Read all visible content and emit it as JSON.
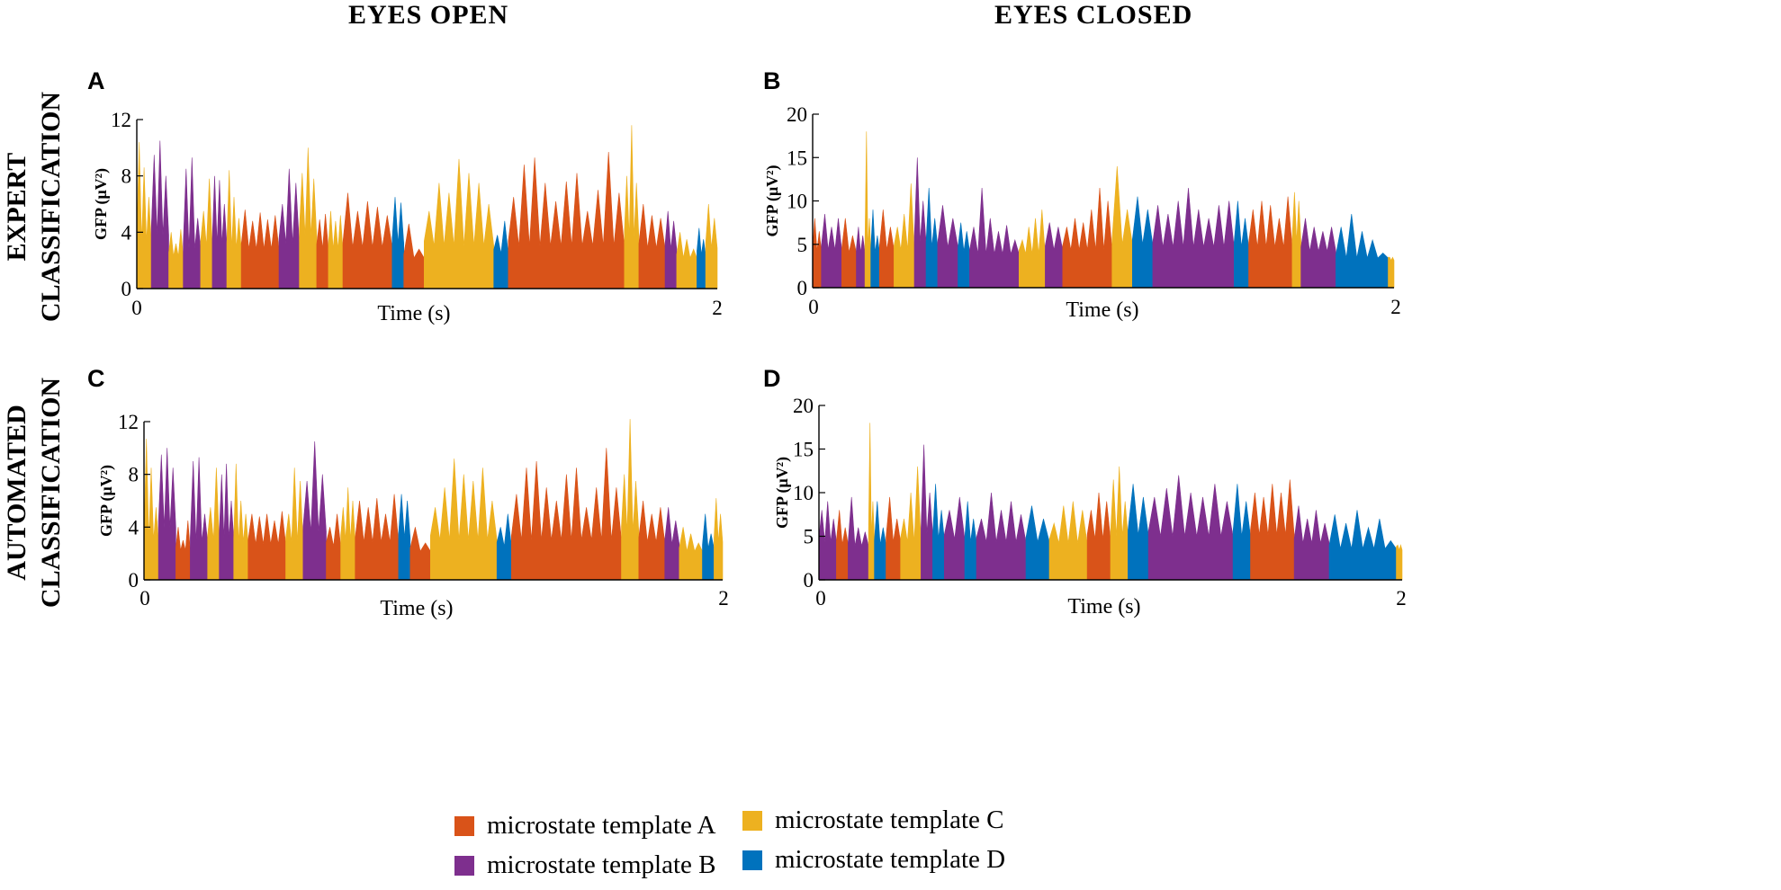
{
  "column_titles": [
    "EYES OPEN",
    "EYES CLOSED"
  ],
  "row_titles": [
    {
      "line1": "EXPERT",
      "line2": "CLASSIFICATION"
    },
    {
      "line1": "AUTOMATED",
      "line2": "CLASSIFICATION"
    }
  ],
  "colors": {
    "A": "#D95319",
    "B": "#7E2F8E",
    "C": "#EDB120",
    "D": "#0072BD"
  },
  "legend": [
    {
      "key": "A",
      "label": "microstate template A"
    },
    {
      "key": "C",
      "label": "microstate template C"
    },
    {
      "key": "B",
      "label": "microstate template B"
    },
    {
      "key": "D",
      "label": "microstate template D"
    }
  ],
  "chart_data": [
    {
      "panel": "A",
      "type": "area",
      "condition": "EYES OPEN",
      "classification": "EXPERT CLASSIFICATION",
      "xlabel": "Time (s)",
      "ylabel": "GFP (μV²)",
      "xlim": [
        0,
        2
      ],
      "ylim": [
        0,
        12
      ],
      "xticks": [
        "0",
        "2"
      ],
      "yticks": [
        "0",
        "4",
        "8",
        "12"
      ],
      "segments": [
        {
          "state": "C",
          "t0": 0.0,
          "t1": 0.05,
          "peaks": [
            10.4,
            8.6,
            6.5
          ]
        },
        {
          "state": "B",
          "t0": 0.05,
          "t1": 0.11,
          "peaks": [
            9.5,
            10.5,
            8.0
          ]
        },
        {
          "state": "C",
          "t0": 0.11,
          "t1": 0.16,
          "peaks": [
            4.0,
            3.2,
            4.2
          ]
        },
        {
          "state": "B",
          "t0": 0.16,
          "t1": 0.22,
          "peaks": [
            8.5,
            9.3,
            5.0
          ]
        },
        {
          "state": "C",
          "t0": 0.22,
          "t1": 0.26,
          "peaks": [
            5.5,
            7.8
          ]
        },
        {
          "state": "B",
          "t0": 0.26,
          "t1": 0.31,
          "peaks": [
            8.0,
            7.7,
            6.0
          ]
        },
        {
          "state": "C",
          "t0": 0.31,
          "t1": 0.36,
          "peaks": [
            8.4,
            6.5,
            5.0
          ]
        },
        {
          "state": "A",
          "t0": 0.36,
          "t1": 0.49,
          "peaks": [
            5.6,
            4.8,
            5.4,
            4.9,
            5.2
          ]
        },
        {
          "state": "B",
          "t0": 0.49,
          "t1": 0.56,
          "peaks": [
            6.0,
            8.5,
            7.5
          ]
        },
        {
          "state": "C",
          "t0": 0.56,
          "t1": 0.62,
          "peaks": [
            8.2,
            10.0,
            7.8
          ]
        },
        {
          "state": "A",
          "t0": 0.62,
          "t1": 0.66,
          "peaks": [
            4.9,
            5.3
          ]
        },
        {
          "state": "C",
          "t0": 0.66,
          "t1": 0.71,
          "peaks": [
            5.5,
            4.8,
            5.2
          ]
        },
        {
          "state": "A",
          "t0": 0.71,
          "t1": 0.88,
          "peaks": [
            6.8,
            5.5,
            6.2,
            5.8,
            5.2
          ]
        },
        {
          "state": "D",
          "t0": 0.88,
          "t1": 0.92,
          "peaks": [
            6.5,
            6.1
          ]
        },
        {
          "state": "A",
          "t0": 0.92,
          "t1": 0.99,
          "peaks": [
            4.6,
            2.8
          ]
        },
        {
          "state": "C",
          "t0": 0.99,
          "t1": 1.23,
          "peaks": [
            5.5,
            7.5,
            6.8,
            9.2,
            8.2,
            7.5,
            6.0
          ]
        },
        {
          "state": "D",
          "t0": 1.23,
          "t1": 1.28,
          "peaks": [
            3.8,
            4.8
          ]
        },
        {
          "state": "A",
          "t0": 1.28,
          "t1": 1.68,
          "peaks": [
            6.5,
            8.8,
            9.3,
            7.5,
            6.2,
            7.6,
            8.2,
            5.5,
            7.0,
            9.7,
            6.8
          ]
        },
        {
          "state": "C",
          "t0": 1.68,
          "t1": 1.73,
          "peaks": [
            8.0,
            11.6,
            7.5
          ]
        },
        {
          "state": "A",
          "t0": 1.73,
          "t1": 1.82,
          "peaks": [
            6.0,
            5.2,
            5.0
          ]
        },
        {
          "state": "B",
          "t0": 1.82,
          "t1": 1.86,
          "peaks": [
            5.5,
            4.8
          ]
        },
        {
          "state": "C",
          "t0": 1.86,
          "t1": 1.93,
          "peaks": [
            4.0,
            3.5,
            2.8
          ]
        },
        {
          "state": "D",
          "t0": 1.93,
          "t1": 1.96,
          "peaks": [
            4.3,
            3.5
          ]
        },
        {
          "state": "C",
          "t0": 1.96,
          "t1": 2.0,
          "peaks": [
            6.0,
            5.0
          ]
        }
      ]
    },
    {
      "panel": "B",
      "type": "area",
      "condition": "EYES CLOSED",
      "classification": "EXPERT CLASSIFICATION",
      "xlabel": "Time (s)",
      "ylabel": "GFP (μV²)",
      "xlim": [
        0,
        2
      ],
      "ylim": [
        0,
        20
      ],
      "xticks": [
        "0",
        "2"
      ],
      "yticks": [
        "0",
        "5",
        "10",
        "15",
        "20"
      ],
      "segments": [
        {
          "state": "A",
          "t0": 0.0,
          "t1": 0.03,
          "peaks": [
            8.0,
            6.5
          ]
        },
        {
          "state": "B",
          "t0": 0.03,
          "t1": 0.1,
          "peaks": [
            8.5,
            7.0,
            8.0
          ]
        },
        {
          "state": "A",
          "t0": 0.1,
          "t1": 0.15,
          "peaks": [
            8.0,
            6.0
          ]
        },
        {
          "state": "B",
          "t0": 0.15,
          "t1": 0.18,
          "peaks": [
            7.0,
            6.0
          ]
        },
        {
          "state": "C",
          "t0": 0.18,
          "t1": 0.2,
          "peaks": [
            18.0,
            8.0
          ]
        },
        {
          "state": "D",
          "t0": 0.2,
          "t1": 0.23,
          "peaks": [
            9.0,
            6.0
          ]
        },
        {
          "state": "A",
          "t0": 0.23,
          "t1": 0.28,
          "peaks": [
            9.0,
            7.0
          ]
        },
        {
          "state": "C",
          "t0": 0.28,
          "t1": 0.35,
          "peaks": [
            7.0,
            8.5,
            12.0
          ]
        },
        {
          "state": "B",
          "t0": 0.35,
          "t1": 0.39,
          "peaks": [
            15.0,
            10.0
          ]
        },
        {
          "state": "D",
          "t0": 0.39,
          "t1": 0.43,
          "peaks": [
            11.5,
            8.0
          ]
        },
        {
          "state": "B",
          "t0": 0.43,
          "t1": 0.5,
          "peaks": [
            9.5,
            8.0
          ]
        },
        {
          "state": "D",
          "t0": 0.5,
          "t1": 0.54,
          "peaks": [
            7.5,
            6.5
          ]
        },
        {
          "state": "B",
          "t0": 0.54,
          "t1": 0.71,
          "peaks": [
            7.0,
            11.5,
            8.0,
            6.5,
            7.2,
            5.5
          ]
        },
        {
          "state": "C",
          "t0": 0.71,
          "t1": 0.8,
          "peaks": [
            5.5,
            7.0,
            8.0,
            9.0
          ]
        },
        {
          "state": "B",
          "t0": 0.8,
          "t1": 0.86,
          "peaks": [
            7.5,
            7.0
          ]
        },
        {
          "state": "A",
          "t0": 0.86,
          "t1": 1.03,
          "peaks": [
            7.0,
            8.0,
            7.5,
            9.0,
            11.5,
            10.0
          ]
        },
        {
          "state": "C",
          "t0": 1.03,
          "t1": 1.1,
          "peaks": [
            14.0,
            9.0
          ]
        },
        {
          "state": "D",
          "t0": 1.1,
          "t1": 1.17,
          "peaks": [
            10.5,
            9.0
          ]
        },
        {
          "state": "B",
          "t0": 1.17,
          "t1": 1.45,
          "peaks": [
            9.5,
            8.5,
            10.0,
            11.5,
            9.0,
            8.0,
            9.5,
            10.0
          ]
        },
        {
          "state": "D",
          "t0": 1.45,
          "t1": 1.5,
          "peaks": [
            10.0,
            8.0
          ]
        },
        {
          "state": "A",
          "t0": 1.5,
          "t1": 1.65,
          "peaks": [
            9.0,
            10.0,
            9.5,
            8.0,
            10.5
          ]
        },
        {
          "state": "C",
          "t0": 1.65,
          "t1": 1.68,
          "peaks": [
            11.0,
            10.0
          ]
        },
        {
          "state": "B",
          "t0": 1.68,
          "t1": 1.8,
          "peaks": [
            8.0,
            7.0,
            6.5,
            7.0
          ]
        },
        {
          "state": "D",
          "t0": 1.8,
          "t1": 1.98,
          "peaks": [
            7.0,
            8.5,
            6.5,
            5.5,
            4.0
          ]
        },
        {
          "state": "C",
          "t0": 1.98,
          "t1": 2.0,
          "peaks": [
            3.5,
            3.5
          ]
        }
      ]
    },
    {
      "panel": "C",
      "type": "area",
      "condition": "EYES OPEN",
      "classification": "AUTOMATED CLASSIFICATION",
      "xlabel": "Time (s)",
      "ylabel": "GFP (μV²)",
      "xlim": [
        0,
        2
      ],
      "ylim": [
        0,
        12
      ],
      "xticks": [
        "0",
        "2"
      ],
      "yticks": [
        "0",
        "4",
        "8",
        "12"
      ],
      "segments": [
        {
          "state": "C",
          "t0": 0.0,
          "t1": 0.05,
          "peaks": [
            10.7,
            8.5,
            5.5
          ]
        },
        {
          "state": "B",
          "t0": 0.05,
          "t1": 0.11,
          "peaks": [
            9.5,
            10.0,
            8.5
          ]
        },
        {
          "state": "A",
          "t0": 0.11,
          "t1": 0.16,
          "peaks": [
            4.0,
            3.0,
            4.5
          ]
        },
        {
          "state": "B",
          "t0": 0.16,
          "t1": 0.22,
          "peaks": [
            9.0,
            9.3,
            5.0
          ]
        },
        {
          "state": "C",
          "t0": 0.22,
          "t1": 0.26,
          "peaks": [
            5.5,
            8.5
          ]
        },
        {
          "state": "B",
          "t0": 0.26,
          "t1": 0.31,
          "peaks": [
            8.0,
            8.8,
            6.0
          ]
        },
        {
          "state": "C",
          "t0": 0.31,
          "t1": 0.36,
          "peaks": [
            8.8,
            6.0,
            5.0
          ]
        },
        {
          "state": "A",
          "t0": 0.36,
          "t1": 0.49,
          "peaks": [
            5.0,
            4.8,
            5.0,
            4.5,
            5.2
          ]
        },
        {
          "state": "C",
          "t0": 0.49,
          "t1": 0.55,
          "peaks": [
            5.0,
            8.5,
            7.5
          ]
        },
        {
          "state": "B",
          "t0": 0.55,
          "t1": 0.63,
          "peaks": [
            7.5,
            10.5,
            8.0
          ]
        },
        {
          "state": "A",
          "t0": 0.63,
          "t1": 0.68,
          "peaks": [
            4.0,
            5.0
          ]
        },
        {
          "state": "C",
          "t0": 0.68,
          "t1": 0.73,
          "peaks": [
            5.5,
            7.0,
            6.0
          ]
        },
        {
          "state": "A",
          "t0": 0.73,
          "t1": 0.88,
          "peaks": [
            6.0,
            5.5,
            6.2,
            5.0,
            6.5
          ]
        },
        {
          "state": "D",
          "t0": 0.88,
          "t1": 0.92,
          "peaks": [
            6.5,
            6.0
          ]
        },
        {
          "state": "A",
          "t0": 0.92,
          "t1": 0.99,
          "peaks": [
            4.0,
            2.8
          ]
        },
        {
          "state": "C",
          "t0": 0.99,
          "t1": 1.22,
          "peaks": [
            5.5,
            7.0,
            9.2,
            8.0,
            7.5,
            8.5,
            6.0
          ]
        },
        {
          "state": "D",
          "t0": 1.22,
          "t1": 1.27,
          "peaks": [
            4.0,
            5.0
          ]
        },
        {
          "state": "A",
          "t0": 1.27,
          "t1": 1.65,
          "peaks": [
            6.5,
            8.5,
            9.0,
            7.0,
            6.0,
            8.0,
            8.5,
            5.5,
            7.0,
            10.0,
            7.0
          ]
        },
        {
          "state": "C",
          "t0": 1.65,
          "t1": 1.71,
          "peaks": [
            8.0,
            12.2,
            7.5
          ]
        },
        {
          "state": "A",
          "t0": 1.71,
          "t1": 1.8,
          "peaks": [
            6.0,
            5.0,
            5.5
          ]
        },
        {
          "state": "B",
          "t0": 1.8,
          "t1": 1.85,
          "peaks": [
            5.5,
            4.5
          ]
        },
        {
          "state": "C",
          "t0": 1.85,
          "t1": 1.93,
          "peaks": [
            4.0,
            3.5,
            2.8
          ]
        },
        {
          "state": "D",
          "t0": 1.93,
          "t1": 1.97,
          "peaks": [
            5.0,
            3.5
          ]
        },
        {
          "state": "C",
          "t0": 1.97,
          "t1": 2.0,
          "peaks": [
            6.2,
            5.0
          ]
        }
      ]
    },
    {
      "panel": "D",
      "type": "area",
      "condition": "EYES CLOSED",
      "classification": "AUTOMATED CLASSIFICATION",
      "xlabel": "Time (s)",
      "ylabel": "GFP (μV²)",
      "xlim": [
        0,
        2
      ],
      "ylim": [
        0,
        20
      ],
      "xticks": [
        "0",
        "2"
      ],
      "yticks": [
        "0",
        "5",
        "10",
        "15",
        "20"
      ],
      "segments": [
        {
          "state": "B",
          "t0": 0.0,
          "t1": 0.06,
          "peaks": [
            8.0,
            9.0,
            7.0
          ]
        },
        {
          "state": "A",
          "t0": 0.06,
          "t1": 0.1,
          "peaks": [
            8.0,
            6.0
          ]
        },
        {
          "state": "B",
          "t0": 0.1,
          "t1": 0.17,
          "peaks": [
            9.5,
            6.0,
            5.5
          ]
        },
        {
          "state": "C",
          "t0": 0.17,
          "t1": 0.19,
          "peaks": [
            18.0,
            9.0
          ]
        },
        {
          "state": "D",
          "t0": 0.19,
          "t1": 0.23,
          "peaks": [
            9.0,
            6.0
          ]
        },
        {
          "state": "A",
          "t0": 0.23,
          "t1": 0.28,
          "peaks": [
            9.5,
            7.0
          ]
        },
        {
          "state": "C",
          "t0": 0.28,
          "t1": 0.35,
          "peaks": [
            7.0,
            10.0,
            13.0
          ]
        },
        {
          "state": "B",
          "t0": 0.35,
          "t1": 0.39,
          "peaks": [
            15.5,
            10.0
          ]
        },
        {
          "state": "D",
          "t0": 0.39,
          "t1": 0.43,
          "peaks": [
            11.0,
            8.0
          ]
        },
        {
          "state": "B",
          "t0": 0.43,
          "t1": 0.5,
          "peaks": [
            8.0,
            9.5
          ]
        },
        {
          "state": "D",
          "t0": 0.5,
          "t1": 0.54,
          "peaks": [
            9.0,
            7.0
          ]
        },
        {
          "state": "B",
          "t0": 0.54,
          "t1": 0.71,
          "peaks": [
            7.0,
            10.0,
            8.0,
            9.0,
            7.5
          ]
        },
        {
          "state": "D",
          "t0": 0.71,
          "t1": 0.79,
          "peaks": [
            8.5,
            7.0
          ]
        },
        {
          "state": "C",
          "t0": 0.79,
          "t1": 0.92,
          "peaks": [
            6.5,
            8.5,
            9.0,
            8.0
          ]
        },
        {
          "state": "A",
          "t0": 0.92,
          "t1": 1.0,
          "peaks": [
            8.0,
            10.0,
            9.0
          ]
        },
        {
          "state": "C",
          "t0": 1.0,
          "t1": 1.06,
          "peaks": [
            11.5,
            13.0,
            9.0
          ]
        },
        {
          "state": "D",
          "t0": 1.06,
          "t1": 1.13,
          "peaks": [
            11.0,
            9.5
          ]
        },
        {
          "state": "B",
          "t0": 1.13,
          "t1": 1.42,
          "peaks": [
            9.5,
            10.5,
            12.0,
            10.0,
            9.5,
            11.0,
            9.0
          ]
        },
        {
          "state": "D",
          "t0": 1.42,
          "t1": 1.48,
          "peaks": [
            11.0,
            9.0
          ]
        },
        {
          "state": "A",
          "t0": 1.48,
          "t1": 1.63,
          "peaks": [
            10.0,
            9.5,
            11.0,
            10.0,
            11.5
          ]
        },
        {
          "state": "B",
          "t0": 1.63,
          "t1": 1.75,
          "peaks": [
            8.5,
            7.0,
            8.0,
            6.5
          ]
        },
        {
          "state": "D",
          "t0": 1.75,
          "t1": 1.98,
          "peaks": [
            7.5,
            6.5,
            8.0,
            6.0,
            7.0,
            4.5
          ]
        },
        {
          "state": "C",
          "t0": 1.98,
          "t1": 2.0,
          "peaks": [
            4.0,
            4.0
          ]
        }
      ]
    }
  ]
}
